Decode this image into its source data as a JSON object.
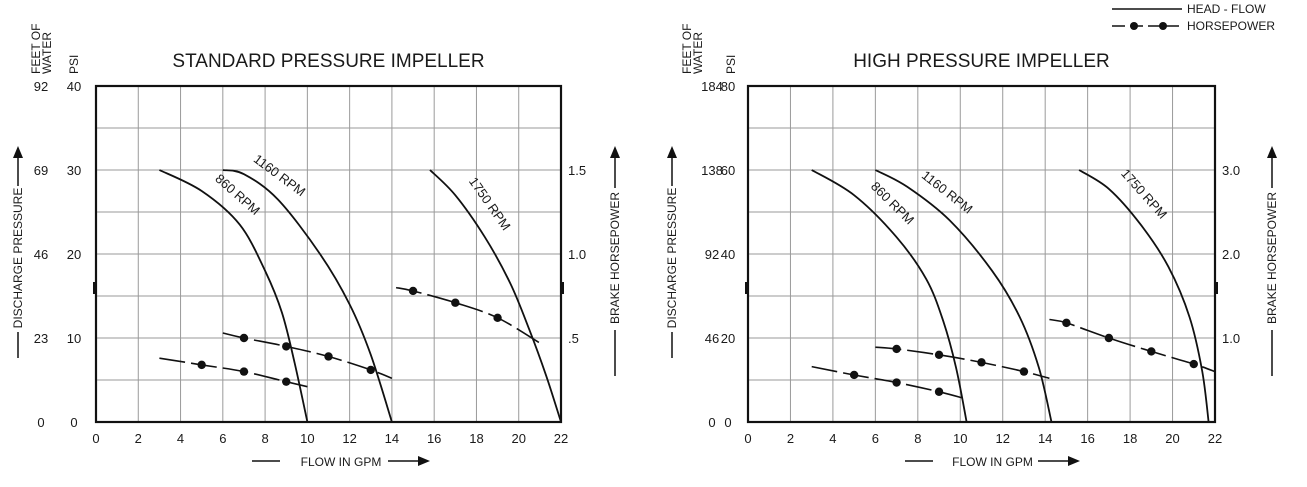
{
  "legend": {
    "head_flow": "HEAD - FLOW",
    "horsepower": "HORSEPOWER"
  },
  "chart_data": [
    {
      "type": "line",
      "title": "STANDARD PRESSURE IMPELLER",
      "xlabel": "FLOW IN GPM",
      "ylabel": "DISCHARGE PRESSURE",
      "y2label": "BRAKE HORSEPOWER",
      "feet_header": "FEET OF WATER",
      "psi_header": "PSI",
      "xlim": [
        0,
        22
      ],
      "ylim": [
        0,
        40
      ],
      "x_ticks": [
        0,
        2,
        4,
        6,
        8,
        10,
        12,
        14,
        16,
        18,
        20,
        22
      ],
      "psi_ticks": [
        0,
        10,
        20,
        30,
        40
      ],
      "feet_ticks": [
        "0",
        "23",
        "46",
        "69",
        "92"
      ],
      "hp_ticks": [
        ".5",
        "1.0",
        "1.5"
      ],
      "grid": true,
      "head_flow": [
        {
          "name": "860 RPM",
          "x": [
            3,
            5,
            6.8,
            8,
            8.8,
            9.4,
            10
          ],
          "y": [
            30,
            27.5,
            23.5,
            18,
            13,
            7,
            0
          ]
        },
        {
          "name": "1160 RPM",
          "x": [
            6,
            7,
            8.6,
            10.6,
            12,
            13,
            14
          ],
          "y": [
            30,
            29.5,
            26.5,
            20,
            14,
            8,
            0
          ]
        },
        {
          "name": "1750 RPM",
          "x": [
            15.8,
            17,
            18.4,
            19.6,
            20.5,
            21.3,
            22
          ],
          "y": [
            30,
            27,
            22,
            16.5,
            11,
            5.5,
            0
          ]
        }
      ],
      "horsepower": [
        {
          "x": [
            3,
            5,
            7,
            9,
            10
          ],
          "hp": [
            0.38,
            0.34,
            0.3,
            0.24,
            0.21
          ],
          "markers": [
            5,
            7,
            9
          ]
        },
        {
          "x": [
            6,
            7,
            9,
            11,
            13,
            14
          ],
          "hp": [
            0.53,
            0.5,
            0.45,
            0.39,
            0.31,
            0.26
          ],
          "markers": [
            7,
            9,
            11,
            13
          ]
        },
        {
          "x": [
            14.2,
            15,
            17,
            19,
            21
          ],
          "hp": [
            0.8,
            0.78,
            0.71,
            0.62,
            0.47
          ],
          "markers": [
            15,
            17,
            19
          ]
        }
      ]
    },
    {
      "type": "line",
      "title": "HIGH PRESSURE IMPELLER",
      "xlabel": "FLOW IN GPM",
      "ylabel": "DISCHARGE PRESSURE",
      "y2label": "BRAKE HORSEPOWER",
      "feet_header": "FEET OF WATER",
      "psi_header": "PSI",
      "xlim": [
        0,
        22
      ],
      "ylim": [
        0,
        80
      ],
      "x_ticks": [
        0,
        2,
        4,
        6,
        8,
        10,
        12,
        14,
        16,
        18,
        20,
        22
      ],
      "psi_ticks": [
        0,
        20,
        40,
        60,
        80
      ],
      "feet_ticks": [
        "0",
        "46",
        "92",
        "138",
        "184"
      ],
      "hp_ticks": [
        "1.0",
        "2.0",
        "3.0"
      ],
      "grid": true,
      "head_flow": [
        {
          "name": "860 RPM",
          "x": [
            3,
            5,
            7,
            8.4,
            9.2,
            9.8,
            10.3
          ],
          "y": [
            60,
            54,
            44,
            34,
            24,
            13,
            0
          ]
        },
        {
          "name": "1160 RPM",
          "x": [
            6,
            7.5,
            9.5,
            11.5,
            12.8,
            13.7,
            14.3
          ],
          "y": [
            60,
            56,
            48,
            36,
            25,
            13,
            0
          ]
        },
        {
          "name": "1750 RPM",
          "x": [
            15.6,
            17,
            18.5,
            19.8,
            20.8,
            21.4,
            21.7
          ],
          "y": [
            60,
            55.5,
            47,
            37,
            25,
            12,
            0
          ]
        }
      ],
      "horsepower": [
        {
          "x": [
            3,
            5,
            7,
            9,
            10.2
          ],
          "hp": [
            0.66,
            0.56,
            0.47,
            0.36,
            0.28
          ],
          "markers": [
            5,
            7,
            9
          ]
        },
        {
          "x": [
            6,
            7,
            9,
            11,
            13,
            14.2
          ],
          "hp": [
            0.89,
            0.87,
            0.8,
            0.71,
            0.6,
            0.52
          ],
          "markers": [
            7,
            9,
            11,
            13
          ]
        },
        {
          "x": [
            14.2,
            15,
            17,
            19,
            21,
            22
          ],
          "hp": [
            1.22,
            1.18,
            1.0,
            0.84,
            0.69,
            0.6
          ],
          "markers": [
            15,
            17,
            19,
            21
          ]
        }
      ]
    }
  ]
}
